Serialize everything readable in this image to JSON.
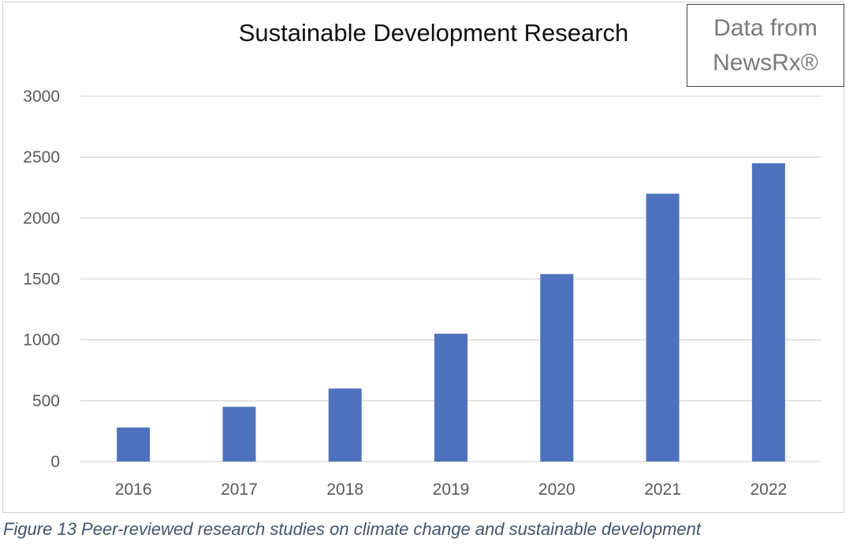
{
  "source_box": {
    "line1": "Data from",
    "line2": "NewsRx®"
  },
  "caption": "Figure 13 Peer-reviewed research studies on climate change and sustainable development",
  "chart_data": {
    "type": "bar",
    "title": "Sustainable Development Research",
    "xlabel": "",
    "ylabel": "",
    "categories": [
      "2016",
      "2017",
      "2018",
      "2019",
      "2020",
      "2021",
      "2022"
    ],
    "values": [
      280,
      450,
      600,
      1050,
      1540,
      2200,
      2450
    ],
    "ylim": [
      0,
      3000
    ],
    "yticks": [
      0,
      500,
      1000,
      1500,
      2000,
      2500,
      3000
    ],
    "grid": true,
    "legend": "none",
    "bar_color": "#4f72be",
    "grid_color": "#d9d9d9"
  }
}
